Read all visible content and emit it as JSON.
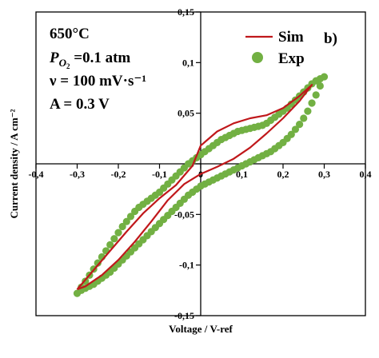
{
  "chart_data": {
    "type": "scatter",
    "xlabel": "Voltage / V-ref",
    "ylabel": "Current density / A cm⁻²",
    "xlim": [
      -0.4,
      0.4
    ],
    "ylim": [
      -0.15,
      0.15
    ],
    "x_ticks": [
      "-0,4",
      "-0,3",
      "-0,2",
      "-0,1",
      "0",
      "0,1",
      "0,2",
      "0,3",
      "0,4"
    ],
    "y_ticks": [
      "0,15",
      "0,1",
      "0,05",
      "0",
      "-0,05",
      "-0,1",
      "-0,15"
    ],
    "panel_label": "b)",
    "annotations": {
      "temperature": "650°C",
      "po2_symbol": "P",
      "po2_subscript": "O",
      "po2_sub2": "2",
      "po2_value": " =0.1 atm",
      "scan_rate": "ν = 100 mV·s⁻¹",
      "amplitude": "A = 0.3 V"
    },
    "legend_position": "top-right",
    "grid": false,
    "colors": {
      "sim": "#c0181b",
      "exp": "#72b043"
    },
    "series": [
      {
        "name": "Sim",
        "kind": "line",
        "x": [
          -0.3,
          -0.26,
          -0.22,
          -0.18,
          -0.14,
          -0.1,
          -0.06,
          -0.02,
          0.0,
          0.04,
          0.08,
          0.12,
          0.16,
          0.2,
          0.24,
          0.27,
          0.24,
          0.2,
          0.16,
          0.12,
          0.08,
          0.04,
          0.0,
          -0.04,
          -0.08,
          -0.12,
          -0.16,
          -0.2,
          -0.24,
          -0.28,
          -0.3
        ],
        "y": [
          -0.124,
          -0.105,
          -0.086,
          -0.067,
          -0.049,
          -0.034,
          -0.021,
          -0.002,
          0.018,
          0.032,
          0.04,
          0.045,
          0.048,
          0.055,
          0.067,
          0.078,
          0.062,
          0.045,
          0.03,
          0.016,
          0.005,
          -0.003,
          -0.01,
          -0.02,
          -0.036,
          -0.057,
          -0.077,
          -0.095,
          -0.11,
          -0.121,
          -0.124
        ]
      },
      {
        "name": "Exp",
        "kind": "scatter",
        "x": [
          -0.3,
          -0.29,
          -0.28,
          -0.27,
          -0.26,
          -0.25,
          -0.24,
          -0.23,
          -0.22,
          -0.21,
          -0.2,
          -0.19,
          -0.18,
          -0.17,
          -0.16,
          -0.15,
          -0.14,
          -0.13,
          -0.12,
          -0.11,
          -0.1,
          -0.09,
          -0.08,
          -0.07,
          -0.06,
          -0.05,
          -0.04,
          -0.03,
          -0.02,
          -0.01,
          0.0,
          0.01,
          0.02,
          0.03,
          0.04,
          0.05,
          0.06,
          0.07,
          0.08,
          0.09,
          0.1,
          0.11,
          0.12,
          0.13,
          0.14,
          0.15,
          0.16,
          0.17,
          0.18,
          0.19,
          0.2,
          0.21,
          0.22,
          0.23,
          0.24,
          0.25,
          0.26,
          0.27,
          0.28,
          0.29,
          0.3,
          0.29,
          0.28,
          0.27,
          0.26,
          0.25,
          0.24,
          0.23,
          0.22,
          0.21,
          0.2,
          0.19,
          0.18,
          0.17,
          0.16,
          0.15,
          0.14,
          0.13,
          0.12,
          0.11,
          0.1,
          0.09,
          0.08,
          0.07,
          0.06,
          0.05,
          0.04,
          0.03,
          0.02,
          0.01,
          0.0,
          -0.01,
          -0.02,
          -0.03,
          -0.04,
          -0.05,
          -0.06,
          -0.07,
          -0.08,
          -0.09,
          -0.1,
          -0.11,
          -0.12,
          -0.13,
          -0.14,
          -0.15,
          -0.16,
          -0.17,
          -0.18,
          -0.19,
          -0.2,
          -0.21,
          -0.22,
          -0.23,
          -0.24,
          -0.25,
          -0.26,
          -0.27,
          -0.28,
          -0.29
        ],
        "y": [
          -0.128,
          -0.122,
          -0.116,
          -0.11,
          -0.104,
          -0.098,
          -0.092,
          -0.086,
          -0.08,
          -0.074,
          -0.068,
          -0.062,
          -0.057,
          -0.052,
          -0.047,
          -0.043,
          -0.04,
          -0.037,
          -0.034,
          -0.031,
          -0.028,
          -0.024,
          -0.02,
          -0.016,
          -0.012,
          -0.008,
          -0.004,
          0.0,
          0.003,
          0.006,
          0.009,
          0.012,
          0.015,
          0.018,
          0.021,
          0.024,
          0.026,
          0.028,
          0.03,
          0.032,
          0.033,
          0.034,
          0.035,
          0.036,
          0.037,
          0.038,
          0.04,
          0.043,
          0.046,
          0.049,
          0.052,
          0.055,
          0.059,
          0.063,
          0.067,
          0.071,
          0.075,
          0.079,
          0.082,
          0.084,
          0.086,
          0.077,
          0.068,
          0.06,
          0.052,
          0.045,
          0.039,
          0.034,
          0.029,
          0.025,
          0.021,
          0.018,
          0.015,
          0.012,
          0.01,
          0.008,
          0.006,
          0.004,
          0.002,
          0.0,
          -0.002,
          -0.004,
          -0.006,
          -0.008,
          -0.01,
          -0.012,
          -0.014,
          -0.016,
          -0.018,
          -0.02,
          -0.022,
          -0.025,
          -0.028,
          -0.031,
          -0.035,
          -0.039,
          -0.043,
          -0.047,
          -0.051,
          -0.055,
          -0.059,
          -0.063,
          -0.067,
          -0.071,
          -0.075,
          -0.079,
          -0.083,
          -0.087,
          -0.091,
          -0.095,
          -0.099,
          -0.103,
          -0.107,
          -0.11,
          -0.113,
          -0.116,
          -0.119,
          -0.121,
          -0.123,
          -0.125
        ]
      }
    ]
  }
}
